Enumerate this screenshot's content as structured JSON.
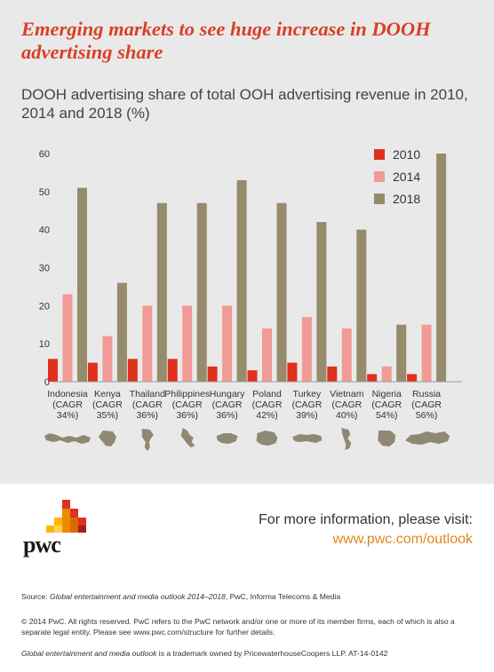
{
  "headline": "Emerging markets to see huge increase in DOOH advertising share",
  "chart_data": {
    "type": "bar",
    "title": "DOOH advertising share of total OOH advertising revenue in 2010, 2014 and 2018 (%)",
    "categories": [
      "Indonesia",
      "Kenya",
      "Thailand",
      "Philippines",
      "Hungary",
      "Poland",
      "Turkey",
      "Vietnam",
      "Nigeria",
      "Russia"
    ],
    "category_notes": [
      "(CAGR 34%)",
      "(CAGR 35%)",
      "(CAGR 36%)",
      "(CAGR 36%)",
      "(CAGR 36%)",
      "(CAGR 42%)",
      "(CAGR 39%)",
      "(CAGR 40%)",
      "(CAGR 54%)",
      "(CAGR 56%)"
    ],
    "series": [
      {
        "name": "2010",
        "color": "#e0301e",
        "values": [
          6,
          5,
          6,
          6,
          4,
          3,
          5,
          4,
          2,
          2
        ]
      },
      {
        "name": "2014",
        "color": "#f19a96",
        "values": [
          23,
          12,
          20,
          20,
          20,
          14,
          17,
          14,
          4,
          15
        ]
      },
      {
        "name": "2018",
        "color": "#968c6d",
        "values": [
          51,
          26,
          47,
          47,
          53,
          47,
          42,
          40,
          15,
          60
        ]
      }
    ],
    "ylim": [
      0,
      60
    ],
    "yticks": [
      0,
      10,
      20,
      30,
      40,
      50,
      60
    ],
    "grid": false,
    "legend": "top-right",
    "icons": [
      "indonesia-map-icon",
      "kenya-map-icon",
      "thailand-map-icon",
      "philippines-map-icon",
      "hungary-map-icon",
      "poland-map-icon",
      "turkey-map-icon",
      "vietnam-map-icon",
      "nigeria-map-icon",
      "russia-map-icon"
    ],
    "icon_color": "#8f8873"
  },
  "info": {
    "line": "For more information, please visit:",
    "link": "www.pwc.com/outlook"
  },
  "brand": {
    "wordmark": "pwc"
  },
  "footer": {
    "source_prefix": "Source: ",
    "source_title": "Global entertainment and media outlook 2014–2018",
    "source_suffix": ", PwC, Informa Telecoms & Media",
    "copyright": "© 2014 PwC. All rights reserved. PwC refers to the PwC network and/or one or more of its member firms, each of which is also a separate legal entity. Please see www.pwc.com/structure for further details.",
    "trademark_title": "Global entertainment and media outlook",
    "trademark_rest": " is a trademark owned by PricewaterhouseCoopers LLP. AT-14-0142"
  }
}
